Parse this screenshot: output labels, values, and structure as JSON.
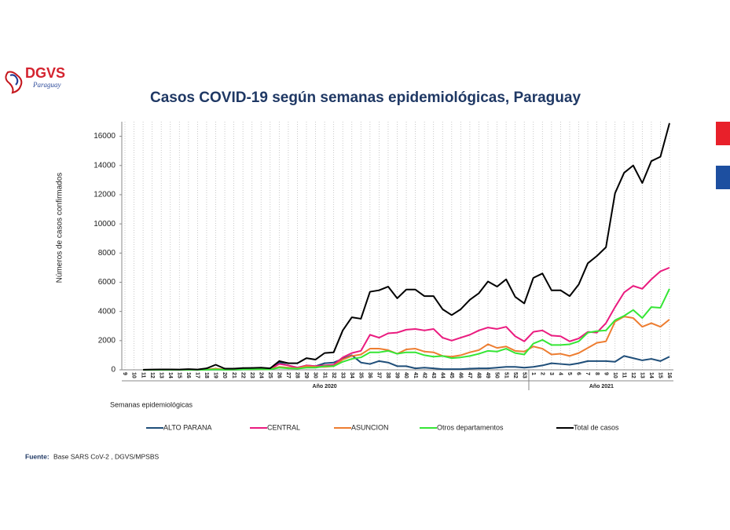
{
  "header": {
    "logo_text": "DGVS",
    "logo_subtext": "Paraguay"
  },
  "chart_data": {
    "type": "line",
    "title": "Casos COVID-19 según semanas epidemiológicas, Paraguay",
    "y_label": "Números de casos confirmados",
    "x_label": "Semanas epidemiológicas",
    "x_group_labels": [
      "Año 2020",
      "Año 2021"
    ],
    "categories": [
      "9",
      "10",
      "11",
      "12",
      "13",
      "14",
      "15",
      "16",
      "17",
      "18",
      "19",
      "20",
      "21",
      "22",
      "23",
      "24",
      "25",
      "26",
      "27",
      "28",
      "29",
      "30",
      "31",
      "32",
      "33",
      "34",
      "35",
      "36",
      "37",
      "38",
      "39",
      "40",
      "41",
      "42",
      "43",
      "44",
      "45",
      "46",
      "47",
      "48",
      "49",
      "50",
      "51",
      "52",
      "53",
      "1",
      "2",
      "3",
      "4",
      "5",
      "6",
      "7",
      "8",
      "9",
      "10",
      "11",
      "12",
      "13",
      "14",
      "15",
      "16"
    ],
    "ylim": [
      0,
      17000
    ],
    "yticks": [
      0,
      2000,
      4000,
      6000,
      8000,
      10000,
      12000,
      14000,
      16000
    ],
    "grid": true,
    "legend": "bottom",
    "series": [
      {
        "name": "ALTO PARANA",
        "color": "#1f4e79",
        "values": [
          null,
          null,
          0,
          0,
          0,
          0,
          0,
          0,
          0,
          10,
          20,
          10,
          10,
          20,
          20,
          30,
          30,
          500,
          300,
          150,
          300,
          250,
          450,
          500,
          750,
          1000,
          500,
          400,
          600,
          500,
          250,
          250,
          100,
          150,
          100,
          50,
          50,
          50,
          80,
          100,
          100,
          150,
          200,
          200,
          150,
          200,
          300,
          450,
          400,
          350,
          450,
          600,
          600,
          600,
          550,
          950,
          800,
          650,
          750,
          600,
          900
        ]
      },
      {
        "name": "CENTRAL",
        "color": "#ea1b7f",
        "values": [
          null,
          null,
          0,
          0,
          0,
          0,
          0,
          0,
          0,
          20,
          50,
          20,
          30,
          40,
          50,
          60,
          50,
          400,
          300,
          150,
          300,
          250,
          300,
          350,
          850,
          1150,
          1300,
          2400,
          2200,
          2500,
          2550,
          2750,
          2800,
          2700,
          2800,
          2200,
          2000,
          2200,
          2400,
          2700,
          2900,
          2800,
          2950,
          2300,
          1950,
          2600,
          2700,
          2350,
          2300,
          1950,
          2150,
          2600,
          2550,
          3200,
          4300,
          5300,
          5750,
          5550,
          6200,
          6750,
          7000
        ]
      },
      {
        "name": "ASUNCION",
        "color": "#ed7d31",
        "values": [
          null,
          null,
          0,
          0,
          0,
          0,
          0,
          0,
          0,
          30,
          80,
          20,
          20,
          30,
          40,
          50,
          40,
          200,
          150,
          100,
          250,
          200,
          200,
          250,
          700,
          950,
          1050,
          1450,
          1450,
          1350,
          1100,
          1400,
          1450,
          1250,
          1200,
          950,
          900,
          1000,
          1200,
          1350,
          1750,
          1500,
          1600,
          1300,
          1250,
          1600,
          1450,
          1050,
          1100,
          950,
          1150,
          1500,
          1850,
          1950,
          3300,
          3650,
          3550,
          2950,
          3200,
          2950,
          3450
        ]
      },
      {
        "name": "Otros departamentos",
        "color": "#35e635",
        "values": [
          null,
          null,
          0,
          0,
          0,
          0,
          0,
          0,
          0,
          10,
          30,
          10,
          20,
          30,
          40,
          40,
          30,
          150,
          100,
          80,
          150,
          150,
          250,
          250,
          550,
          750,
          850,
          1200,
          1200,
          1300,
          1100,
          1200,
          1200,
          1000,
          900,
          950,
          800,
          850,
          950,
          1100,
          1300,
          1250,
          1450,
          1150,
          1050,
          1800,
          2050,
          1700,
          1700,
          1750,
          1950,
          2550,
          2650,
          2700,
          3400,
          3700,
          4100,
          3550,
          4300,
          4250,
          5550
        ]
      },
      {
        "name": "Total de casos",
        "color": "#000000",
        "values": [
          null,
          null,
          10,
          20,
          30,
          30,
          20,
          50,
          20,
          100,
          350,
          80,
          80,
          120,
          130,
          150,
          100,
          600,
          450,
          450,
          800,
          700,
          1150,
          1200,
          2700,
          3600,
          3500,
          5350,
          5450,
          5700,
          4900,
          5500,
          5500,
          5050,
          5050,
          4150,
          3750,
          4150,
          4800,
          5250,
          6050,
          5700,
          6200,
          5000,
          4550,
          6300,
          6600,
          5450,
          5450,
          5050,
          5850,
          7300,
          7800,
          8400,
          12100,
          13500,
          14000,
          12800,
          14300,
          14600,
          16900
        ]
      }
    ]
  },
  "footer": {
    "label": "Fuente:",
    "text": "Base SARS CoV-2 , DGVS/MPSBS"
  }
}
